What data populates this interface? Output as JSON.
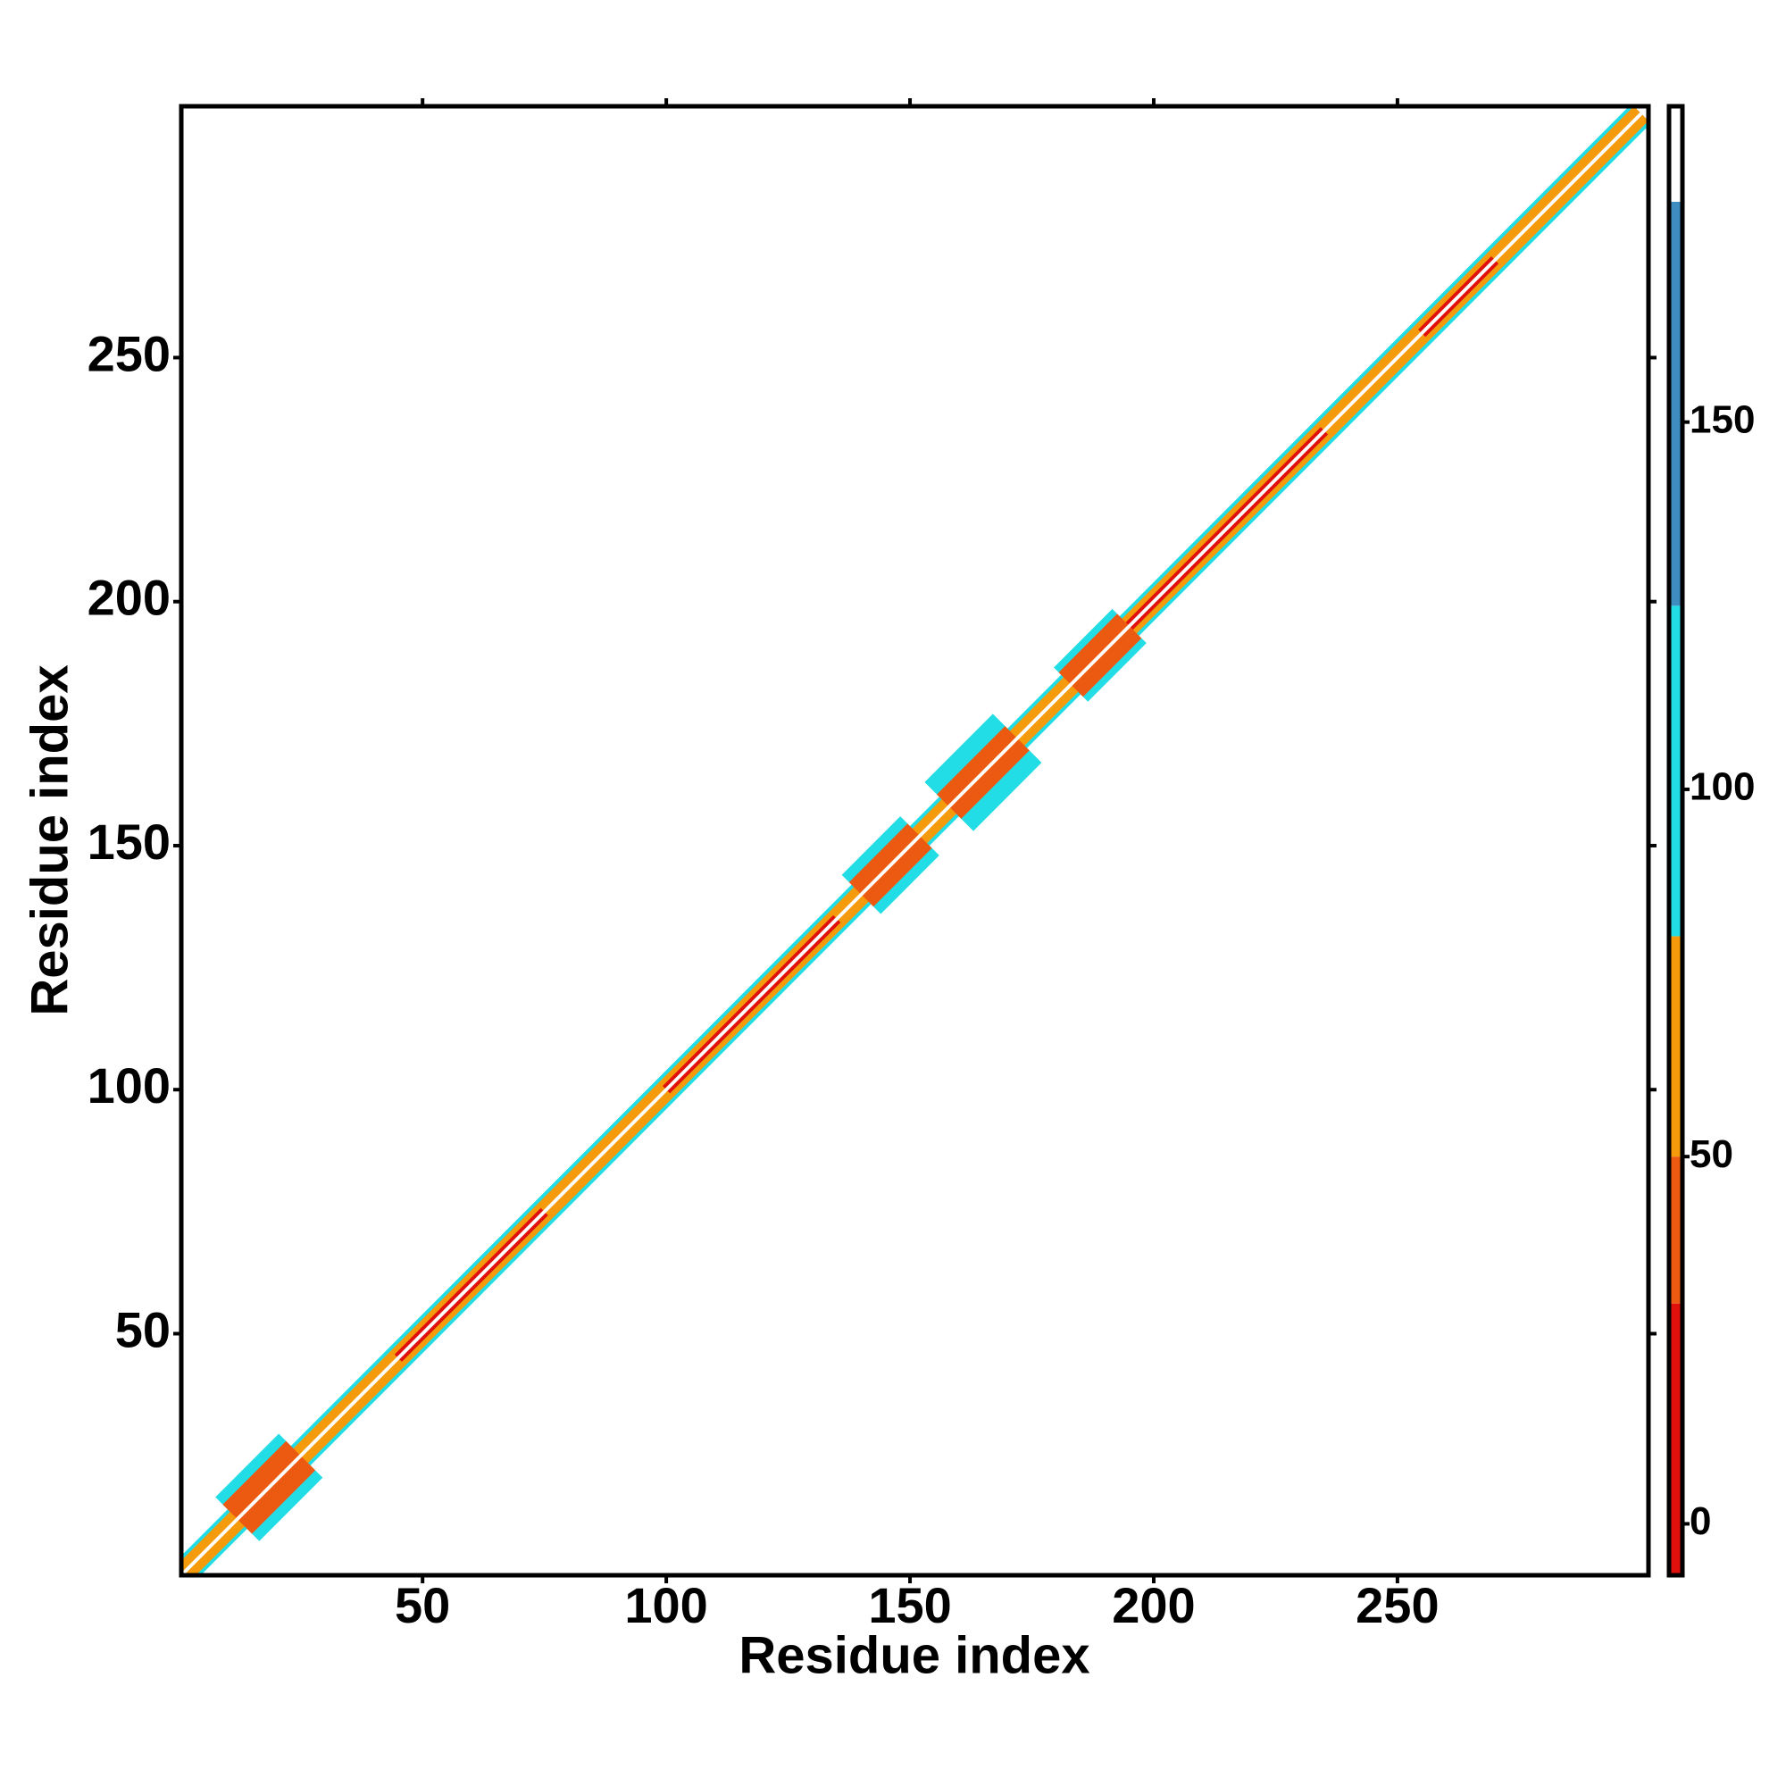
{
  "chart_data": {
    "type": "contact_map",
    "xlabel": "Residue index",
    "ylabel": "Residue index",
    "xlim": [
      0.5,
      301.5
    ],
    "ylim": [
      0.5,
      301.5
    ],
    "xticks": [
      50,
      100,
      150,
      200,
      250
    ],
    "yticks": [
      50,
      100,
      150,
      200,
      250
    ],
    "bands": [
      {
        "start": 1,
        "end": 300,
        "width": 4,
        "value": 100
      },
      {
        "start": 12,
        "end": 25,
        "width": 9,
        "value": 100
      },
      {
        "start": 140,
        "end": 152,
        "width": 8,
        "value": 100
      },
      {
        "start": 158,
        "end": 172,
        "width": 10,
        "value": 100
      },
      {
        "start": 183,
        "end": 195,
        "width": 7,
        "value": 100
      },
      {
        "start": 1,
        "end": 300,
        "width": 3,
        "value": 60
      },
      {
        "start": 12,
        "end": 25,
        "width": 6,
        "value": 40
      },
      {
        "start": 140,
        "end": 152,
        "width": 5,
        "value": 40
      },
      {
        "start": 158,
        "end": 172,
        "width": 5,
        "value": 40
      },
      {
        "start": 183,
        "end": 195,
        "width": 5,
        "value": 40
      },
      {
        "start": 45,
        "end": 75,
        "width": 1.5,
        "value": 10
      },
      {
        "start": 100,
        "end": 135,
        "width": 1.5,
        "value": 10
      },
      {
        "start": 195,
        "end": 235,
        "width": 1.5,
        "value": 10
      },
      {
        "start": 255,
        "end": 270,
        "width": 1.5,
        "value": 10
      },
      {
        "start": 1,
        "end": 300,
        "width": 0.5,
        "value": 190
      }
    ],
    "colorbar": {
      "ylim": [
        -7,
        193
      ],
      "yticks": [
        0,
        50,
        100,
        150
      ],
      "levels": [
        -7,
        30,
        50,
        80,
        125,
        180,
        193
      ],
      "colors": [
        "#e0100c",
        "#ec5a12",
        "#f59a0a",
        "#22dce6",
        "#3f8cc0",
        "#ffffff"
      ]
    }
  }
}
